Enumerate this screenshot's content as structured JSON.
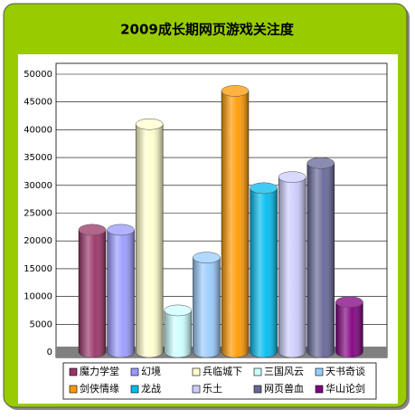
{
  "chart_data": {
    "type": "bar",
    "title": "2009成长期网页游戏关注度",
    "categories": [
      "魔力学堂",
      "幻境",
      "兵临城下",
      "三国风云",
      "天书奇谈",
      "剑侠情缘",
      "龙战",
      "乐土",
      "网页兽血",
      "华山论剑"
    ],
    "values": [
      22000,
      22000,
      41000,
      7500,
      17000,
      47000,
      29500,
      31500,
      34000,
      9000
    ],
    "colors": [
      "#993366",
      "#9999ff",
      "#ffffcc",
      "#ccffff",
      "#99ccff",
      "#ff9900",
      "#00bbee",
      "#ccccff",
      "#666699",
      "#800080"
    ],
    "ylim": [
      0,
      50000
    ],
    "yticks": [
      0,
      5000,
      10000,
      15000,
      20000,
      25000,
      30000,
      35000,
      40000,
      45000,
      50000
    ],
    "grid": true,
    "legend": "bottom"
  }
}
